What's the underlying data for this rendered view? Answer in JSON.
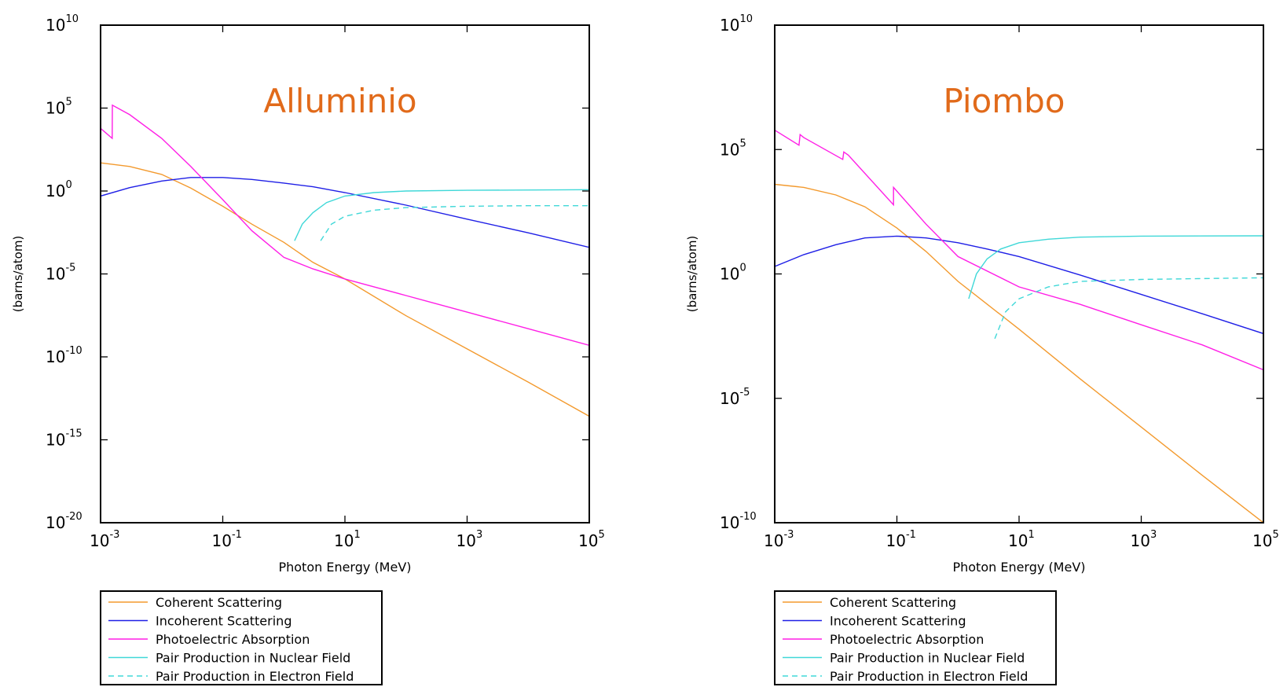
{
  "legend_labels": [
    "Coherent Scattering",
    "Incoherent Scattering",
    "Photoelectric Absorption",
    "Pair Production in Nuclear Field",
    "Pair Production in Electron Field"
  ],
  "colors": {
    "coherent": "#f39a2e",
    "incoherent": "#1f1fe6",
    "photoelectric": "#ff1fe6",
    "pair_nuclear": "#40d8d8",
    "pair_electron": "#40d8d8",
    "title": "#e16a1a"
  },
  "chart_data": [
    {
      "type": "line",
      "title": "Alluminio",
      "xlabel": "Photon Energy (MeV)",
      "ylabel": "(barns/atom)",
      "xscale": "log",
      "yscale": "log",
      "xlim": [
        0.001,
        100000
      ],
      "ylim": [
        1e-20,
        10000000000.0
      ],
      "xticks": [
        {
          "value": 0.001,
          "base": "10",
          "exp": "-3"
        },
        {
          "value": 0.1,
          "base": "10",
          "exp": "-1"
        },
        {
          "value": 10,
          "base": "10",
          "exp": "1"
        },
        {
          "value": 1000,
          "base": "10",
          "exp": "3"
        },
        {
          "value": 100000,
          "base": "10",
          "exp": "5"
        }
      ],
      "yticks": [
        {
          "value": 10000000000.0,
          "base": "10",
          "exp": "10"
        },
        {
          "value": 100000.0,
          "base": "10",
          "exp": "5"
        },
        {
          "value": 1,
          "base": "10",
          "exp": "0"
        },
        {
          "value": 1e-05,
          "base": "10",
          "exp": "-5"
        },
        {
          "value": 1e-10,
          "base": "10",
          "exp": "-10"
        },
        {
          "value": 1e-15,
          "base": "10",
          "exp": "-15"
        },
        {
          "value": 1e-20,
          "base": "10",
          "exp": "-20"
        }
      ],
      "legend": "below",
      "grid": false,
      "series": [
        {
          "name": "Coherent Scattering",
          "style": "solid",
          "color": "#f39a2e",
          "x": [
            0.001,
            0.003,
            0.01,
            0.03,
            0.1,
            0.3,
            1,
            3,
            10,
            100,
            1000,
            10000,
            100000
          ],
          "y": [
            50,
            30,
            10,
            1.5,
            0.12,
            0.01,
            0.0008,
            5e-05,
            5e-06,
            3e-08,
            3e-10,
            3e-12,
            2.6e-14
          ]
        },
        {
          "name": "Incoherent Scattering",
          "style": "solid",
          "color": "#1f1fe6",
          "x": [
            0.001,
            0.003,
            0.01,
            0.03,
            0.1,
            0.3,
            1,
            3,
            10,
            100,
            1000,
            10000,
            100000
          ],
          "y": [
            0.5,
            1.6,
            4,
            6.5,
            6.5,
            5,
            3,
            1.8,
            0.8,
            0.14,
            0.02,
            0.003,
            0.0004
          ]
        },
        {
          "name": "Photoelectric Absorption",
          "style": "solid",
          "color": "#ff1fe6",
          "x": [
            0.001,
            0.00155,
            0.00156,
            0.003,
            0.01,
            0.03,
            0.1,
            0.3,
            1,
            3,
            10,
            100,
            1000,
            10000,
            100000
          ],
          "y": [
            6000,
            1500,
            150000,
            40000,
            1500,
            30,
            0.3,
            0.004,
            0.0001,
            2e-05,
            5e-06,
            5e-07,
            5e-08,
            5e-09,
            5e-10
          ]
        },
        {
          "name": "Pair Production in Nuclear Field",
          "style": "solid",
          "color": "#40d8d8",
          "x": [
            1.5,
            2,
            3,
            5,
            10,
            30,
            100,
            1000,
            100000
          ],
          "y": [
            0.001,
            0.01,
            0.05,
            0.2,
            0.5,
            0.8,
            1,
            1.1,
            1.2
          ]
        },
        {
          "name": "Pair Production in Electron Field",
          "style": "dashed",
          "color": "#40d8d8",
          "x": [
            4,
            6,
            10,
            30,
            100,
            1000,
            10000,
            100000
          ],
          "y": [
            0.001,
            0.01,
            0.03,
            0.07,
            0.1,
            0.12,
            0.13,
            0.13
          ]
        }
      ]
    },
    {
      "type": "line",
      "title": "Piombo",
      "xlabel": "Photon Energy (MeV)",
      "ylabel": "(barns/atom)",
      "xscale": "log",
      "yscale": "log",
      "xlim": [
        0.001,
        100000
      ],
      "ylim": [
        1e-10,
        10000000000.0
      ],
      "xticks": [
        {
          "value": 0.001,
          "base": "10",
          "exp": "-3"
        },
        {
          "value": 0.1,
          "base": "10",
          "exp": "-1"
        },
        {
          "value": 10,
          "base": "10",
          "exp": "1"
        },
        {
          "value": 1000,
          "base": "10",
          "exp": "3"
        },
        {
          "value": 100000,
          "base": "10",
          "exp": "5"
        }
      ],
      "yticks": [
        {
          "value": 10000000000.0,
          "base": "10",
          "exp": "10"
        },
        {
          "value": 100000.0,
          "base": "10",
          "exp": "5"
        },
        {
          "value": 1,
          "base": "10",
          "exp": "0"
        },
        {
          "value": 1e-05,
          "base": "10",
          "exp": "-5"
        },
        {
          "value": 1e-10,
          "base": "10",
          "exp": "-10"
        }
      ],
      "legend": "below",
      "grid": false,
      "series": [
        {
          "name": "Coherent Scattering",
          "style": "solid",
          "color": "#f39a2e",
          "x": [
            0.001,
            0.003,
            0.01,
            0.03,
            0.1,
            0.3,
            1,
            10,
            100,
            1000,
            10000,
            100000
          ],
          "y": [
            4000,
            3000,
            1500,
            500,
            70,
            8,
            0.5,
            0.006,
            6e-05,
            7e-07,
            8e-09,
            1e-10
          ]
        },
        {
          "name": "Incoherent Scattering",
          "style": "solid",
          "color": "#1f1fe6",
          "x": [
            0.001,
            0.003,
            0.01,
            0.03,
            0.1,
            0.3,
            1,
            3,
            10,
            100,
            1000,
            10000,
            100000
          ],
          "y": [
            2,
            6,
            15,
            28,
            33,
            28,
            18,
            10,
            5,
            0.9,
            0.15,
            0.025,
            0.004
          ]
        },
        {
          "name": "Photoelectric Absorption",
          "style": "solid",
          "color": "#ff1fe6",
          "x": [
            0.001,
            0.0025,
            0.0026,
            0.003,
            0.013,
            0.0135,
            0.016,
            0.088,
            0.0881,
            0.3,
            1,
            10,
            100,
            1000,
            10000,
            100000
          ],
          "y": [
            600000,
            150000,
            400000,
            300000,
            40000,
            80000,
            60000,
            600,
            3000,
            100,
            5,
            0.3,
            0.06,
            0.009,
            0.0014,
            0.00014
          ]
        },
        {
          "name": "Pair Production in Nuclear Field",
          "style": "solid",
          "color": "#40d8d8",
          "x": [
            1.5,
            2,
            3,
            5,
            10,
            30,
            100,
            1000,
            100000
          ],
          "y": [
            0.1,
            1,
            4,
            10,
            18,
            25,
            30,
            33,
            34
          ]
        },
        {
          "name": "Pair Production in Electron Field",
          "style": "dashed",
          "color": "#40d8d8",
          "x": [
            4,
            6,
            10,
            30,
            100,
            1000,
            10000,
            100000
          ],
          "y": [
            0.0025,
            0.03,
            0.1,
            0.3,
            0.5,
            0.6,
            0.65,
            0.7
          ]
        }
      ]
    }
  ]
}
